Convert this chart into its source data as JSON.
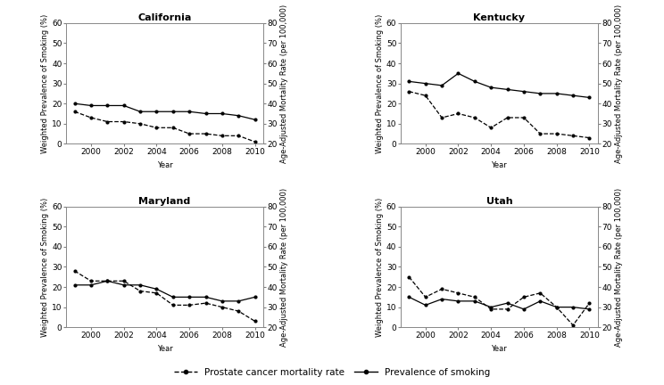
{
  "years": [
    1999,
    2000,
    2001,
    2002,
    2003,
    2004,
    2005,
    2006,
    2007,
    2008,
    2009,
    2010
  ],
  "states": [
    "California",
    "Kentucky",
    "Maryland",
    "Utah"
  ],
  "smoking": {
    "California": [
      20,
      19,
      19,
      19,
      16,
      16,
      16,
      16,
      15,
      15,
      14,
      12
    ],
    "Kentucky": [
      31,
      30,
      29,
      35,
      31,
      28,
      27,
      26,
      25,
      25,
      24,
      23
    ],
    "Maryland": [
      21,
      21,
      23,
      21,
      21,
      19,
      15,
      15,
      15,
      13,
      13,
      15
    ],
    "Utah": [
      15,
      11,
      14,
      13,
      13,
      10,
      12,
      9,
      13,
      10,
      10,
      9
    ]
  },
  "mortality": {
    "California": [
      36,
      33,
      31,
      31,
      30,
      28,
      28,
      25,
      25,
      24,
      24,
      21
    ],
    "Kentucky": [
      46,
      44,
      33,
      35,
      33,
      28,
      33,
      33,
      25,
      25,
      24,
      23
    ],
    "Maryland": [
      48,
      43,
      43,
      43,
      38,
      37,
      31,
      31,
      32,
      30,
      28,
      23
    ],
    "Utah": [
      45,
      35,
      39,
      37,
      35,
      29,
      29,
      35,
      37,
      30,
      21,
      32
    ]
  },
  "left_ylim": [
    0,
    60
  ],
  "left_yticks": [
    0,
    10,
    20,
    30,
    40,
    50,
    60
  ],
  "right_ylim": [
    20,
    80
  ],
  "right_yticks": [
    20,
    30,
    40,
    50,
    60,
    70,
    80
  ],
  "xlabel": "Year",
  "left_ylabel": "Weighted Prevalence of Smoking (%)",
  "right_ylabel": "Age-Adjusted Mortality Rate (per 100,000)",
  "legend_smoking": "Prevalence of smoking",
  "legend_mortality": "Prostate cancer mortality rate",
  "title_fontsize": 8,
  "label_fontsize": 6,
  "tick_fontsize": 6.5,
  "legend_fontsize": 7.5
}
